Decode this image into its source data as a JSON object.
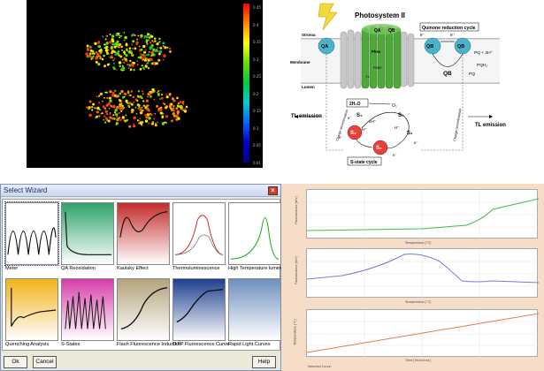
{
  "imaging": {
    "colorbar_ticks": [
      "0.45",
      "0.4",
      "0.35",
      "0.3",
      "0.25",
      "0.2",
      "0.15",
      "0.1",
      "0.05",
      "0.01"
    ],
    "colors": {
      "background": "#000000"
    }
  },
  "diagram": {
    "title": "Photosystem II",
    "quinone_cycle": "Quinone reduction cycle",
    "stroma": "Stroma",
    "membrane": "Membrane",
    "lumen": "Lumen",
    "qa": "QA",
    "qb": "QB",
    "qb_prime": "QB",
    "pq": "PQ + 2H⁺",
    "pqh2": "PQH₂",
    "pq2": "PQ",
    "qb_low": "QB",
    "electron": "e⁻",
    "electron2": "e⁻",
    "pheo": "Pheo",
    "p680": "P680",
    "yz": "Yz",
    "h2o": "2H₂O",
    "o2": "O₂",
    "s0": "S₀",
    "s1": "S₁",
    "s2": "S₂",
    "s3": "S₃",
    "s4": "S₄",
    "h1": "2H⁺",
    "h2": "H⁺",
    "h3": "H⁺",
    "e_s": "e⁻",
    "e_s2": "e⁻",
    "e_s3": "e⁻",
    "e_s4": "e⁻",
    "charge_recomb_left": "Charge recombination",
    "charge_recomb_right": "Charge recombination",
    "tl_left": "TL emission",
    "tl_right": "TL emission",
    "s_state_cycle": "S-state cycle",
    "colors": {
      "green": "#4fa83a",
      "cyan": "#4bb3c9",
      "red": "#e8413b",
      "gray": "#b9b9b9"
    }
  },
  "wizard": {
    "title": "Select Wizard",
    "close": "×",
    "tiles": [
      {
        "label": "Meter",
        "icon": "oscillation-plot-icon",
        "bg": "#ffffff"
      },
      {
        "label": "QA Reoxidation",
        "icon": "decay-curve-icon",
        "bg": "#2fa36a"
      },
      {
        "label": "Kautsky Effect",
        "icon": "kautsky-curve-icon",
        "bg": "#c42b2b"
      },
      {
        "label": "Thermoluminescence",
        "icon": "peak-curve-icon",
        "bg": "#ffffff"
      },
      {
        "label": "High Temperature luminescence",
        "icon": "green-peak-icon",
        "bg": "#ffffff"
      },
      {
        "label": "Quenching Analysis",
        "icon": "quenching-curve-icon",
        "bg": "#f2b21a"
      },
      {
        "label": "S-States",
        "icon": "s-states-icon",
        "bg": "#d63ea8"
      },
      {
        "label": "Flash Fluorescence Induction",
        "icon": "induction-curve-icon",
        "bg": "#b3a37c"
      },
      {
        "label": "OJIP Fluorescence Curve",
        "icon": "ojip-curve-icon",
        "bg": "#1f3f8f"
      },
      {
        "label": "Rapid Light Curves",
        "icon": "rapid-light-icon",
        "bg": "#6f8fbf"
      }
    ],
    "buttons": {
      "ok": "Ok",
      "cancel": "Cancel",
      "help": "Help"
    }
  },
  "plots": {
    "legend": "Selected Curve",
    "top_ylabel": "Fluorescence [mV]",
    "mid_ylabel": "Fluorescence [mV]",
    "bottom_ylabel": "Temperature [°C]",
    "top_xlabel": "Temperature [°C]",
    "mid_xlabel": "Temperature [°C]",
    "bottom_xlabel": "Time [hh:mm:ss]",
    "colors": {
      "top": "#44bb44",
      "mid": "#7b79d6",
      "bottom": "#e07a45"
    }
  }
}
